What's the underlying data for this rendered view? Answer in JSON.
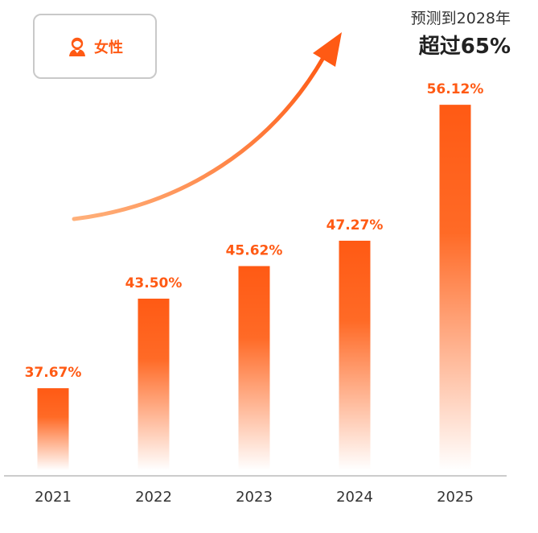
{
  "legend": {
    "label": "女性",
    "icon": "female-person-icon"
  },
  "callout": {
    "line1": "预测到2028年",
    "line2": "超过65%"
  },
  "colors": {
    "accent": "#ff5a14",
    "bar_top": "#ff5a14",
    "bar_bottom": "#ffffff",
    "arrow_start": "#ffb07a",
    "arrow_end": "#ff5a14",
    "axis": "#cccccc",
    "tick_text": "#333333"
  },
  "chart_data": {
    "type": "bar",
    "categories": [
      "2021",
      "2022",
      "2023",
      "2024",
      "2025"
    ],
    "values": [
      37.67,
      43.5,
      45.62,
      47.27,
      56.12
    ],
    "value_labels": [
      "37.67%",
      "43.50%",
      "45.62%",
      "47.27%",
      "56.12%"
    ],
    "title": "",
    "xlabel": "",
    "ylabel": "",
    "grid": false,
    "annotation": "预测到2028年 超过65%"
  }
}
